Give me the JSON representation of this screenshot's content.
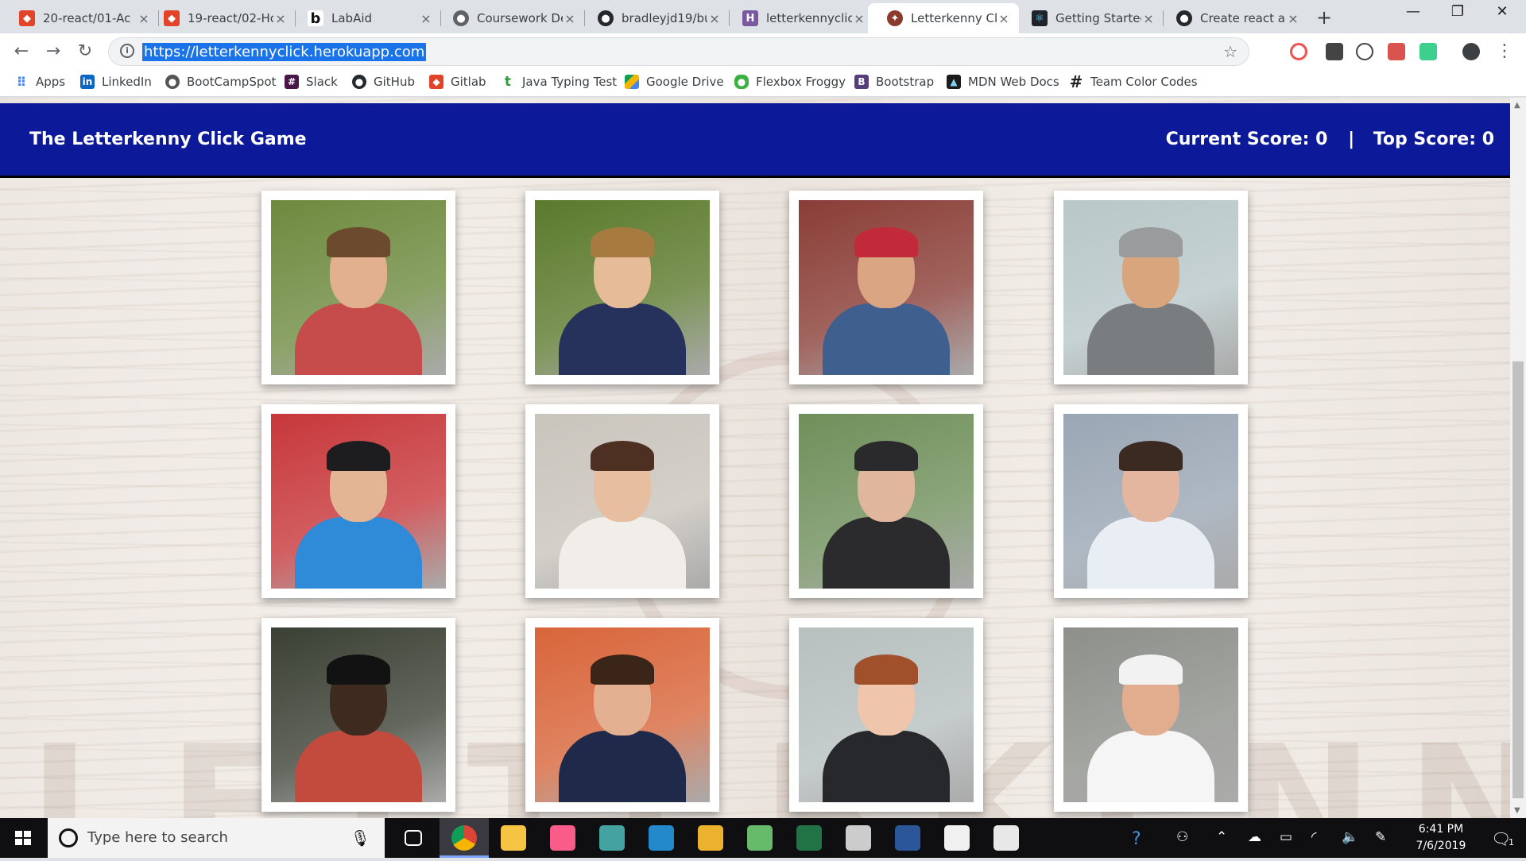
{
  "browser": {
    "tabs": [
      {
        "title": "20-react/01-Ac",
        "icon": "gitlab-icon",
        "color": "#e24329"
      },
      {
        "title": "19-react/02-Hc",
        "icon": "gitlab-icon",
        "color": "#e24329"
      },
      {
        "title": "LabAid",
        "icon": "labaid-icon",
        "color": "#1a1a1a"
      },
      {
        "title": "Coursework De",
        "icon": "globe-icon",
        "color": "#5f6368"
      },
      {
        "title": "bradleyjd19/bu",
        "icon": "github-icon",
        "color": "#24292e"
      },
      {
        "title": "letterkennyclick",
        "icon": "heroku-icon",
        "color": "#79589f"
      },
      {
        "title": "Letterkenny Cli",
        "icon": "letterkenny-icon",
        "color": "#8b3a2e",
        "active": true
      },
      {
        "title": "Getting Started",
        "icon": "react-icon",
        "color": "#20232a"
      },
      {
        "title": "Create react ap",
        "icon": "github-icon",
        "color": "#24292e"
      }
    ],
    "close_glyph": "×",
    "new_tab_glyph": "+",
    "url": "https://letterkennyclick.herokuapp.com",
    "bookmarks": [
      {
        "label": "Apps",
        "icon": "apps-grid-icon",
        "color": "#4285f4"
      },
      {
        "label": "LinkedIn",
        "icon": "linkedin-icon",
        "color": "#0a66c2"
      },
      {
        "label": "BootCampSpot",
        "icon": "bootcampspot-icon",
        "color": "#555555"
      },
      {
        "label": "Slack",
        "icon": "slack-icon",
        "color": "#4a154b"
      },
      {
        "label": "GitHub",
        "icon": "github-icon",
        "color": "#24292e"
      },
      {
        "label": "Gitlab",
        "icon": "gitlab-icon",
        "color": "#e24329"
      },
      {
        "label": "Java Typing Test",
        "icon": "typing-icon",
        "color": "#2e9e3a"
      },
      {
        "label": "Google Drive",
        "icon": "google-drive-icon",
        "color": "#0f9d58"
      },
      {
        "label": "Flexbox Froggy",
        "icon": "froggy-icon",
        "color": "#3cb043"
      },
      {
        "label": "Bootstrap",
        "icon": "bootstrap-icon",
        "color": "#563d7c"
      },
      {
        "label": "MDN Web Docs",
        "icon": "mdn-icon",
        "color": "#1b1b1b"
      },
      {
        "label": "Team Color Codes",
        "icon": "hashtag-icon",
        "color": "#222222"
      }
    ]
  },
  "page": {
    "brand": "The Letterkenny Click Game",
    "current_score_label": "Current Score:",
    "current_score": "0",
    "divider": "|",
    "top_score_label": "Top Score:",
    "top_score": "0",
    "header_color": "#0c1a99",
    "watermark": "LETTERKENNY",
    "cards": [
      {
        "name": "character-1",
        "bg": "#6d8a3e",
        "skin": "#e2b08e",
        "shirt": "#c64b4b",
        "hair": "#6b4a2e"
      },
      {
        "name": "character-2",
        "bg": "#5b7a2c",
        "skin": "#e6bc98",
        "shirt": "#27325c",
        "hair": "#a77b3f"
      },
      {
        "name": "character-3",
        "bg": "#8a3d36",
        "skin": "#d9a582",
        "shirt": "#3f5f8f",
        "hair": "#c22a3a"
      },
      {
        "name": "character-4",
        "bg": "#b8c7c8",
        "skin": "#d8a57d",
        "shirt": "#7a7d80",
        "hair": "#9a9b9c"
      },
      {
        "name": "character-5",
        "bg": "#c7373a",
        "skin": "#e3b594",
        "shirt": "#2f8ad8",
        "hair": "#1d1d1f"
      },
      {
        "name": "character-6",
        "bg": "#c9c4bc",
        "skin": "#e7bea0",
        "shirt": "#f1eeea",
        "hair": "#4e3022"
      },
      {
        "name": "character-7",
        "bg": "#6f8f5a",
        "skin": "#e0b79c",
        "shirt": "#2b2b2e",
        "hair": "#2a2a2d"
      },
      {
        "name": "character-8",
        "bg": "#9aa6b4",
        "skin": "#e4b6a0",
        "shirt": "#e9eef4",
        "hair": "#3a2a22"
      },
      {
        "name": "character-9",
        "bg": "#3b4034",
        "skin": "#3f2a20",
        "shirt": "#c24b3e",
        "hair": "#121212"
      },
      {
        "name": "character-10",
        "bg": "#d8653a",
        "skin": "#e3b091",
        "shirt": "#1f2a4a",
        "hair": "#3a2518"
      },
      {
        "name": "character-11",
        "bg": "#b7c0bf",
        "skin": "#efc6ab",
        "shirt": "#26282c",
        "hair": "#a0512c"
      },
      {
        "name": "character-12",
        "bg": "#8d8f8a",
        "skin": "#e2ad8f",
        "shirt": "#f5f5f5",
        "hair": "#f2f2f2"
      }
    ]
  },
  "taskbar": {
    "search_placeholder": "Type here to search",
    "apps": [
      {
        "name": "task-view-icon",
        "color": "#ffffff"
      },
      {
        "name": "chrome-icon",
        "color": "#f2b400"
      },
      {
        "name": "file-explorer-icon",
        "color": "#f6c443"
      },
      {
        "name": "itunes-icon",
        "color": "#fa5c8a"
      },
      {
        "name": "gitkraken-icon",
        "color": "#44a3a0"
      },
      {
        "name": "vscode-icon",
        "color": "#2489ca"
      },
      {
        "name": "slack-icon",
        "color": "#ecb22e"
      },
      {
        "name": "atom-icon",
        "color": "#66bb6a"
      },
      {
        "name": "excel-icon",
        "color": "#217346"
      },
      {
        "name": "terminal-icon",
        "color": "#cccccc"
      },
      {
        "name": "word-icon",
        "color": "#2b579a"
      },
      {
        "name": "feedback-icon",
        "color": "#f0f0f0"
      },
      {
        "name": "calculator-icon",
        "color": "#e8e8e8"
      }
    ],
    "time": "6:41 PM",
    "date": "7/6/2019",
    "notification_count": "1"
  }
}
